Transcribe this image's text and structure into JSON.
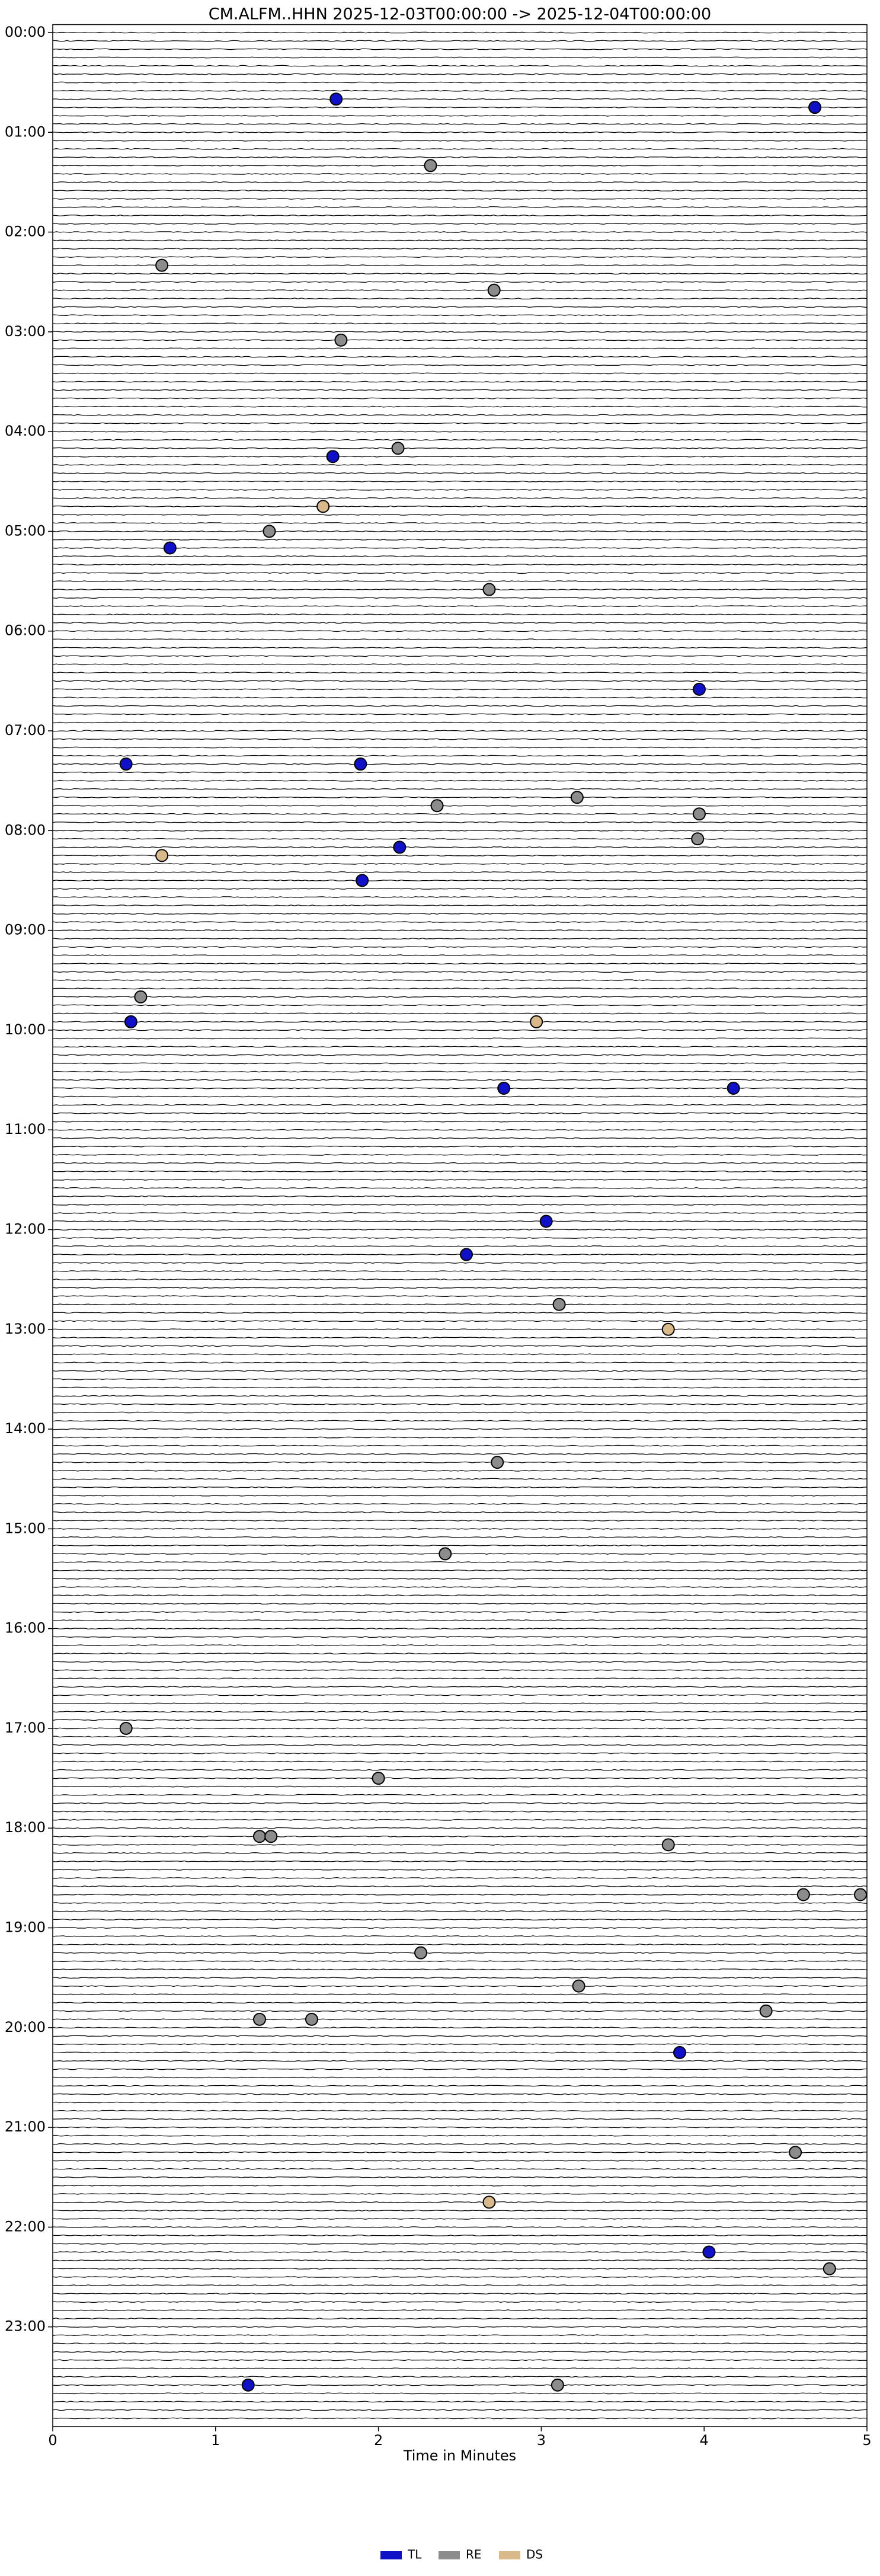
{
  "chart_data": {
    "type": "scatter",
    "title": "CM.ALFM..HHN  2025-12-03T00:00:00 -> 2025-12-04T00:00:00",
    "xlabel": "Time in Minutes",
    "xlim": [
      0,
      5
    ],
    "xticks": [
      0,
      1,
      2,
      3,
      4,
      5
    ],
    "ylim": [
      24,
      -0.08
    ],
    "yticks": [
      {
        "value": 0,
        "label": "00:00"
      },
      {
        "value": 1,
        "label": "01:00"
      },
      {
        "value": 2,
        "label": "02:00"
      },
      {
        "value": 3,
        "label": "03:00"
      },
      {
        "value": 4,
        "label": "04:00"
      },
      {
        "value": 5,
        "label": "05:00"
      },
      {
        "value": 6,
        "label": "06:00"
      },
      {
        "value": 7,
        "label": "07:00"
      },
      {
        "value": 8,
        "label": "08:00"
      },
      {
        "value": 9,
        "label": "09:00"
      },
      {
        "value": 10,
        "label": "10:00"
      },
      {
        "value": 11,
        "label": "11:00"
      },
      {
        "value": 12,
        "label": "12:00"
      },
      {
        "value": 13,
        "label": "13:00"
      },
      {
        "value": 14,
        "label": "14:00"
      },
      {
        "value": 15,
        "label": "15:00"
      },
      {
        "value": 16,
        "label": "16:00"
      },
      {
        "value": 17,
        "label": "17:00"
      },
      {
        "value": 18,
        "label": "18:00"
      },
      {
        "value": 19,
        "label": "19:00"
      },
      {
        "value": 20,
        "label": "20:00"
      },
      {
        "value": 21,
        "label": "21:00"
      },
      {
        "value": 22,
        "label": "22:00"
      },
      {
        "value": 23,
        "label": "23:00"
      }
    ],
    "series": [
      {
        "name": "TL",
        "color": "#1010c8",
        "x": [
          1.74,
          4.68,
          1.72,
          0.72,
          3.97,
          0.45,
          1.89,
          2.13,
          1.9,
          0.48,
          2.77,
          4.18,
          3.03,
          2.54,
          3.85,
          4.03,
          1.2
        ],
        "values": [
          0.667,
          0.75,
          4.25,
          5.167,
          6.583,
          7.333,
          7.333,
          8.167,
          8.5,
          9.917,
          10.583,
          10.583,
          11.917,
          12.25,
          20.25,
          22.25,
          23.583
        ]
      },
      {
        "name": "RE",
        "color": "#8c8c8c",
        "x": [
          2.32,
          0.67,
          2.71,
          1.77,
          2.12,
          1.33,
          2.68,
          2.36,
          3.22,
          3.97,
          3.96,
          0.54,
          3.11,
          2.73,
          2.41,
          0.45,
          2.0,
          1.27,
          1.34,
          3.78,
          4.61,
          4.96,
          2.26,
          3.23,
          4.38,
          1.27,
          1.59,
          4.56,
          4.77,
          3.1
        ],
        "values": [
          1.333,
          2.333,
          2.583,
          3.083,
          4.167,
          5.0,
          5.583,
          7.75,
          7.667,
          7.833,
          8.083,
          9.667,
          12.75,
          14.333,
          15.25,
          17.0,
          17.5,
          18.083,
          18.083,
          18.167,
          18.667,
          18.667,
          19.25,
          19.583,
          19.833,
          19.917,
          19.917,
          21.25,
          22.417,
          23.583
        ]
      },
      {
        "name": "DS",
        "color": "#d9b98a",
        "x": [
          1.66,
          0.67,
          2.97,
          3.78,
          2.68
        ],
        "values": [
          4.75,
          8.25,
          9.917,
          13.0,
          21.75
        ]
      }
    ]
  }
}
